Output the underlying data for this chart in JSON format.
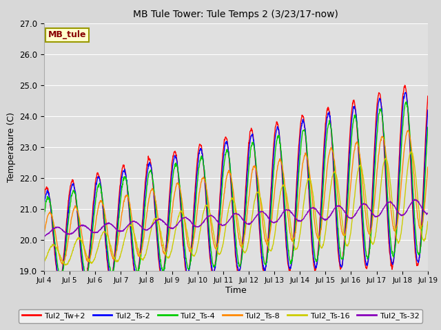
{
  "title": "MB Tule Tower: Tule Temps 2 (3/23/17-now)",
  "xlabel": "Time",
  "ylabel": "Temperature (C)",
  "ylim": [
    19.0,
    27.0
  ],
  "yticks": [
    19.0,
    20.0,
    21.0,
    22.0,
    23.0,
    24.0,
    25.0,
    26.0,
    27.0
  ],
  "xtick_labels": [
    "Jul 4",
    "Jul 5",
    "Jul 6",
    "Jul 7",
    "Jul 8",
    "Jul 9",
    "Jul 10",
    "Jul 11",
    "Jul 12",
    "Jul 13",
    "Jul 14",
    "Jul 15",
    "Jul 16",
    "Jul 17",
    "Jul 18",
    "Jul 19"
  ],
  "series_colors": {
    "Tul2_Tw+2": "#ff0000",
    "Tul2_Ts-2": "#0000ff",
    "Tul2_Ts-4": "#00cc00",
    "Tul2_Ts-8": "#ff8800",
    "Tul2_Ts-16": "#cccc00",
    "Tul2_Ts-32": "#8800bb"
  },
  "legend_box_color": "#ffffcc",
  "legend_box_text": "MB_tule",
  "legend_box_text_color": "#880000",
  "fig_bg_color": "#d8d8d8",
  "plot_bg_color": "#e0e0e0",
  "n_days": 15,
  "pts_per_day": 96
}
